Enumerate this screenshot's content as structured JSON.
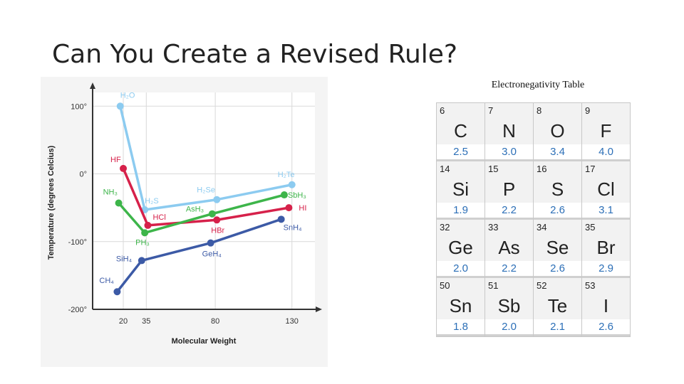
{
  "slide": {
    "title": "Can You Create a Revised Rule?"
  },
  "chart_data": {
    "type": "line",
    "xlabel": "Molecular Weight",
    "ylabel": "Temperature (degrees Celcius)",
    "x_ticks": [
      20,
      35,
      80,
      130
    ],
    "y_ticks": [
      100,
      0,
      -100,
      -200
    ],
    "y_tick_labels": [
      "100°",
      "0°",
      "-100°",
      "-200°"
    ],
    "xlim": [
      0,
      145
    ],
    "ylim": [
      -200,
      115
    ],
    "series": [
      {
        "color": "#8ccbf0",
        "points": [
          {
            "x": 18,
            "y": 100,
            "label": "H₂O"
          },
          {
            "x": 34,
            "y": -53,
            "label": "H₂S"
          },
          {
            "x": 81,
            "y": -38,
            "label": "H₂Se"
          },
          {
            "x": 130,
            "y": -16,
            "label": "H₂Te"
          }
        ]
      },
      {
        "color": "#d6214a",
        "points": [
          {
            "x": 20,
            "y": 8,
            "label": "HF"
          },
          {
            "x": 36,
            "y": -76,
            "label": "HCl"
          },
          {
            "x": 81,
            "y": -68,
            "label": "HBr"
          },
          {
            "x": 128,
            "y": -50,
            "label": "HI"
          }
        ]
      },
      {
        "color": "#3db54a",
        "points": [
          {
            "x": 17,
            "y": -43,
            "label": "NH₃"
          },
          {
            "x": 34,
            "y": -87,
            "label": "PH₃"
          },
          {
            "x": 78,
            "y": -59,
            "label": "AsH₃"
          },
          {
            "x": 125,
            "y": -31,
            "label": "SbH₃"
          }
        ]
      },
      {
        "color": "#3c5aa6",
        "points": [
          {
            "x": 16,
            "y": -174,
            "label": "CH₄"
          },
          {
            "x": 32,
            "y": -128,
            "label": "SiH₄"
          },
          {
            "x": 77,
            "y": -102,
            "label": "GeH₄"
          },
          {
            "x": 123,
            "y": -67,
            "label": "SnH₄"
          }
        ]
      }
    ]
  },
  "electronegativity": {
    "title": "Electronegativity Table",
    "rows": [
      [
        {
          "num": "6",
          "sym": "C",
          "en": "2.5"
        },
        {
          "num": "7",
          "sym": "N",
          "en": "3.0"
        },
        {
          "num": "8",
          "sym": "O",
          "en": "3.4"
        },
        {
          "num": "9",
          "sym": "F",
          "en": "4.0"
        }
      ],
      [
        {
          "num": "14",
          "sym": "Si",
          "en": "1.9"
        },
        {
          "num": "15",
          "sym": "P",
          "en": "2.2"
        },
        {
          "num": "16",
          "sym": "S",
          "en": "2.6"
        },
        {
          "num": "17",
          "sym": "Cl",
          "en": "3.1"
        }
      ],
      [
        {
          "num": "32",
          "sym": "Ge",
          "en": "2.0"
        },
        {
          "num": "33",
          "sym": "As",
          "en": "2.2"
        },
        {
          "num": "34",
          "sym": "Se",
          "en": "2.6"
        },
        {
          "num": "35",
          "sym": "Br",
          "en": "2.9"
        }
      ],
      [
        {
          "num": "50",
          "sym": "Sn",
          "en": "1.8"
        },
        {
          "num": "51",
          "sym": "Sb",
          "en": "2.0"
        },
        {
          "num": "52",
          "sym": "Te",
          "en": "2.1"
        },
        {
          "num": "53",
          "sym": "I",
          "en": "2.6"
        }
      ]
    ]
  }
}
